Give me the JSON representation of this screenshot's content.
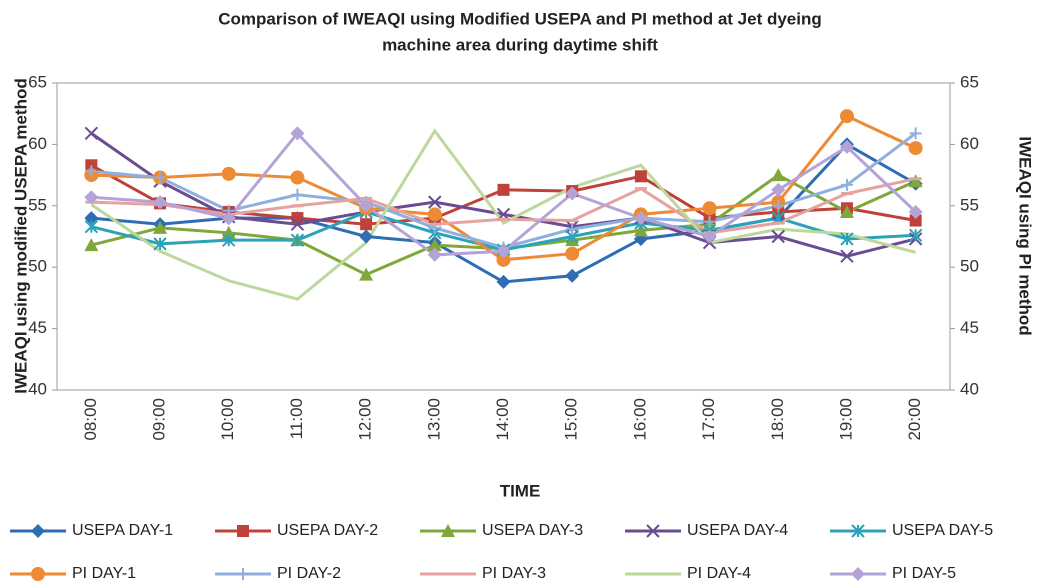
{
  "chart_data": {
    "type": "line",
    "title": [
      "Comparison of IWEAQI using Modified USEPA and PI method at Jet dyeing",
      "machine area during daytime shift"
    ],
    "x_label": "TIME",
    "y_label": "IWEAQI using modified USEPA method",
    "y2_label": "IWEAQI using PI method",
    "categories": [
      "08:00",
      "09:00",
      "10:00",
      "11:00",
      "12:00",
      "13:00",
      "14:00",
      "15:00",
      "16:00",
      "17:00",
      "18:00",
      "19:00",
      "20:00"
    ],
    "ylim": [
      40,
      65
    ],
    "yticks": [
      40,
      45,
      50,
      55,
      60,
      65
    ],
    "y2lim": [
      40,
      65
    ],
    "y2ticks": [
      40,
      45,
      50,
      55,
      60,
      65
    ],
    "series": [
      {
        "name": "USEPA DAY-1",
        "color": "#2e6db4",
        "marker": "diamond",
        "values": [
          54,
          53.5,
          54,
          54,
          52.5,
          52,
          48.8,
          49.3,
          52.3,
          53,
          54,
          60,
          56.8
        ]
      },
      {
        "name": "USEPA DAY-2",
        "color": "#c0403a",
        "marker": "square",
        "values": [
          58.3,
          55.2,
          54.5,
          54,
          53.5,
          54,
          56.3,
          56.2,
          57.4,
          54,
          54.5,
          54.8,
          53.8
        ]
      },
      {
        "name": "USEPA DAY-3",
        "color": "#7fa73a",
        "marker": "triangle",
        "values": [
          51.8,
          53.2,
          52.8,
          52.2,
          49.4,
          51.8,
          51.5,
          52.2,
          53,
          53.5,
          57.5,
          54.5,
          57
        ]
      },
      {
        "name": "USEPA DAY-4",
        "color": "#6a4c93",
        "marker": "x",
        "values": [
          60.9,
          57,
          54.1,
          53.5,
          54.5,
          55.3,
          54.3,
          53.3,
          54,
          52,
          52.5,
          50.9,
          52.3
        ]
      },
      {
        "name": "USEPA DAY-5",
        "color": "#2aa3b8",
        "marker": "star",
        "values": [
          53.3,
          51.9,
          52.2,
          52.2,
          54.5,
          52.8,
          51.4,
          52.5,
          53.6,
          53,
          54,
          52.3,
          52.6
        ]
      },
      {
        "name": "PI DAY-1",
        "color": "#ee8a33",
        "marker": "circle",
        "values": [
          57.5,
          57.3,
          57.6,
          57.3,
          54.8,
          54.3,
          50.6,
          51.1,
          54.3,
          54.8,
          55.3,
          62.3,
          59.7
        ],
        "axis": "y2"
      },
      {
        "name": "PI DAY-2",
        "color": "#8fb0de",
        "marker": "plus",
        "values": [
          57.8,
          57.3,
          54.6,
          55.9,
          55.3,
          53.2,
          51.6,
          53.1,
          54,
          53.7,
          55,
          56.7,
          60.9
        ],
        "axis": "y2"
      },
      {
        "name": "PI DAY-3",
        "color": "#e5a3a0",
        "marker": "dash",
        "values": [
          55.3,
          55.1,
          54.3,
          55,
          55.6,
          53.5,
          53.9,
          53.8,
          56.4,
          52.8,
          53.6,
          56,
          57.2
        ],
        "axis": "y2"
      },
      {
        "name": "PI DAY-4",
        "color": "#bcd89a",
        "marker": "none",
        "values": [
          55.1,
          51.3,
          48.9,
          47.4,
          52,
          61.1,
          53.6,
          56.5,
          58.3,
          52,
          53.1,
          52.7,
          51.2
        ],
        "axis": "y2"
      },
      {
        "name": "PI DAY-5",
        "color": "#b4a3d6",
        "marker": "diamond",
        "values": [
          55.7,
          55.3,
          54,
          60.9,
          55,
          51,
          51.3,
          56,
          54,
          52.5,
          56.3,
          59.8,
          54.5
        ],
        "axis": "y2"
      }
    ]
  }
}
